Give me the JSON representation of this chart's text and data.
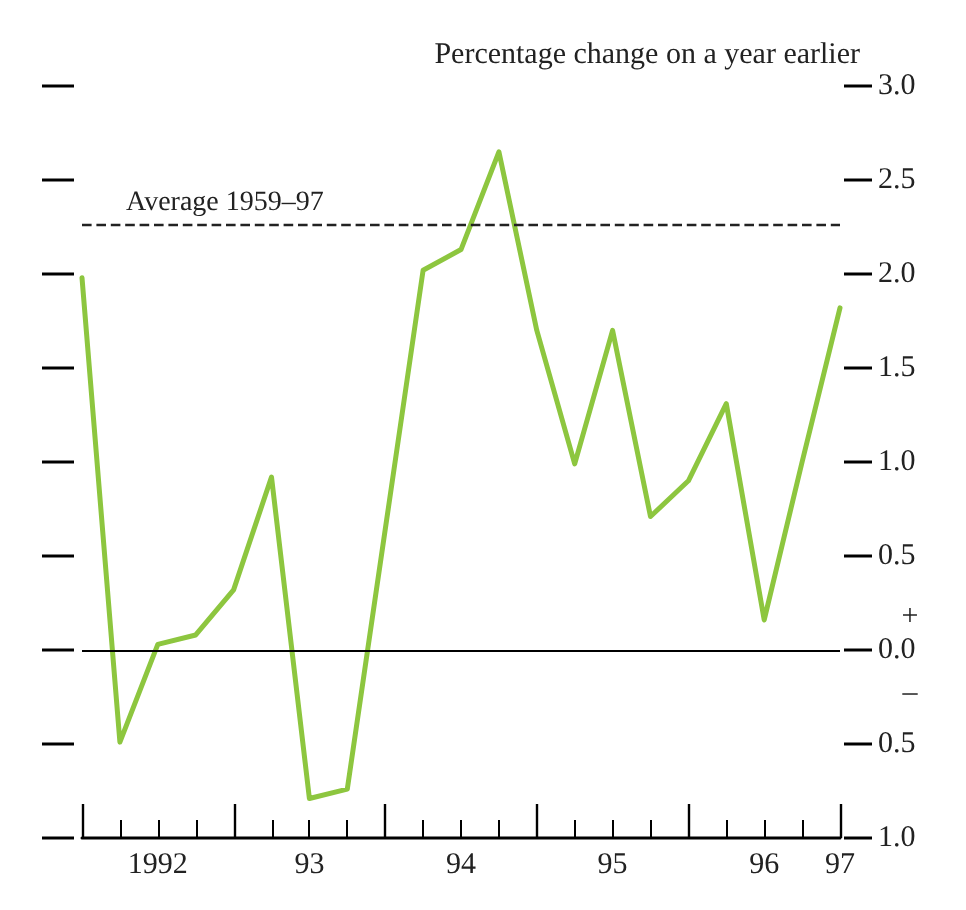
{
  "chart_data": {
    "type": "line",
    "ylabel": "Percentage change on a year earlier",
    "categories": [
      null,
      null,
      "1992",
      null,
      null,
      null,
      "93",
      null,
      null,
      null,
      "94",
      null,
      null,
      null,
      "95",
      null,
      null,
      null,
      "96",
      null,
      "97"
    ],
    "series": [
      {
        "color": "#8dc63f",
        "values": [
          1.98,
          -0.49,
          0.03,
          0.08,
          0.32,
          0.92,
          -0.79,
          -0.74,
          0.64,
          2.02,
          2.13,
          2.65,
          1.7,
          0.99,
          1.7,
          0.71,
          0.9,
          1.31,
          0.16,
          1.0,
          1.82
        ]
      }
    ],
    "ylim": [
      -1,
      3
    ],
    "yticks": [
      {
        "value": -1,
        "label": "1.0"
      },
      {
        "value": -0.5,
        "label": "0.5"
      },
      {
        "value": 0,
        "label": "0.0"
      },
      {
        "value": 0.5,
        "label": "0.5"
      },
      {
        "value": 1,
        "label": "1.0"
      },
      {
        "value": 1.5,
        "label": "1.5"
      },
      {
        "value": 2,
        "label": "2.0"
      },
      {
        "value": 2.5,
        "label": "2.5"
      },
      {
        "value": 3,
        "label": "3.0"
      }
    ],
    "ref_lines": [
      {
        "axis": "y",
        "value": 2.26,
        "label": "Average 1959–97",
        "color": "#222222",
        "line_style": "dashed"
      },
      {
        "axis": "y",
        "value": 0,
        "color": "#000000",
        "line_style": "solid"
      }
    ],
    "annotations": [
      "+",
      "–"
    ],
    "grid": false,
    "marker": "none",
    "line_style": "solid"
  }
}
